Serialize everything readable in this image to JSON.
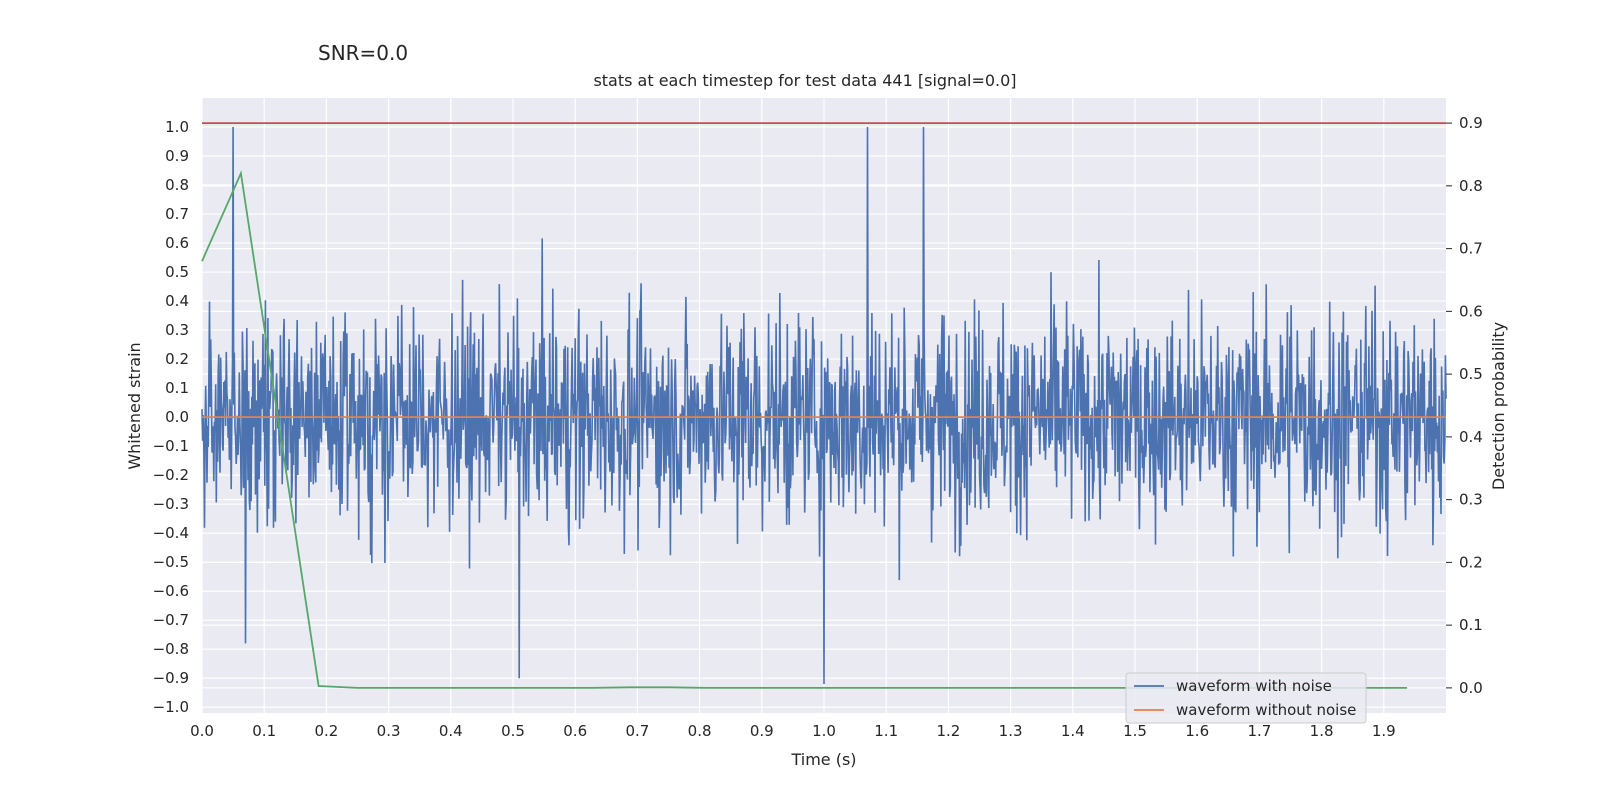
{
  "figure": {
    "suptitle": "SNR=0.0",
    "title": "stats at each timestep for test data 441 [signal=0.0]"
  },
  "chart_data": {
    "type": "line",
    "title": "stats at each timestep for test data 441 [signal=0.0]",
    "suptitle": "SNR=0.0",
    "xlabel": "Time (s)",
    "ylabel": "Whitened strain",
    "y2label": "Detection probability",
    "xlim": [
      0.0,
      2.0
    ],
    "ylim": [
      -1.02,
      1.1
    ],
    "y2lim": [
      -0.04,
      0.94
    ],
    "x_ticks": [
      "0.0",
      "0.1",
      "0.2",
      "0.3",
      "0.4",
      "0.5",
      "0.6",
      "0.7",
      "0.8",
      "0.9",
      "1.0",
      "1.1",
      "1.2",
      "1.3",
      "1.4",
      "1.5",
      "1.6",
      "1.7",
      "1.8",
      "1.9"
    ],
    "y_ticks": [
      "1.0",
      "0.9",
      "0.8",
      "0.7",
      "0.6",
      "0.5",
      "0.4",
      "0.3",
      "0.2",
      "0.1",
      "0.0",
      "−0.1",
      "−0.2",
      "−0.3",
      "−0.4",
      "−0.5",
      "−0.6",
      "−0.7",
      "−0.8",
      "−0.9",
      "−1.0"
    ],
    "y2_ticks": [
      "0.9",
      "0.8",
      "0.7",
      "0.6",
      "0.5",
      "0.4",
      "0.3",
      "0.2",
      "0.1",
      "0.0"
    ],
    "grid": true,
    "legend_position": "lower-right",
    "series": [
      {
        "name": "waveform with noise",
        "axis": "left",
        "color": "#4c72b0",
        "style": "noisy",
        "noise_envelope": [
          -0.92,
          1.0
        ],
        "peaks": [
          [
            0.05,
            1.0
          ],
          [
            1.07,
            1.0
          ],
          [
            1.16,
            1.0
          ],
          [
            1.0,
            -0.92
          ],
          [
            0.51,
            -0.9
          ],
          [
            0.07,
            -0.78
          ]
        ]
      },
      {
        "name": "waveform without noise",
        "axis": "left",
        "color": "#dd8452",
        "x": [
          0.0,
          2.0
        ],
        "y": [
          0.0,
          0.0
        ]
      },
      {
        "name": "",
        "axis": "right",
        "color": "#55a868",
        "x": [
          0.0,
          0.0625,
          0.1875,
          0.25,
          0.3125,
          0.375,
          0.4375,
          0.5,
          0.5625,
          0.625,
          0.6875,
          0.75,
          0.8125,
          0.875,
          0.9375,
          1.0,
          1.0625,
          1.125,
          1.1875,
          1.25,
          1.3125,
          1.375,
          1.4375,
          1.5,
          1.5625,
          1.625,
          1.6875,
          1.75,
          1.8125,
          1.875,
          1.9375
        ],
        "y": [
          0.68,
          0.82,
          0.003,
          0.0,
          0.0,
          0.0,
          0.0,
          0.0,
          0.0,
          0.0,
          0.001,
          0.001,
          0.0,
          0.0,
          0.0,
          0.0,
          0.0,
          0.0,
          0.0,
          0.0,
          0.0,
          0.0,
          0.0,
          0.0,
          0.0,
          0.0,
          0.0,
          0.0,
          0.0,
          0.0,
          0.0
        ]
      },
      {
        "name": "",
        "axis": "right",
        "color": "#c44e52",
        "x": [
          0.0,
          2.0
        ],
        "y": [
          0.9,
          0.9
        ]
      }
    ]
  }
}
